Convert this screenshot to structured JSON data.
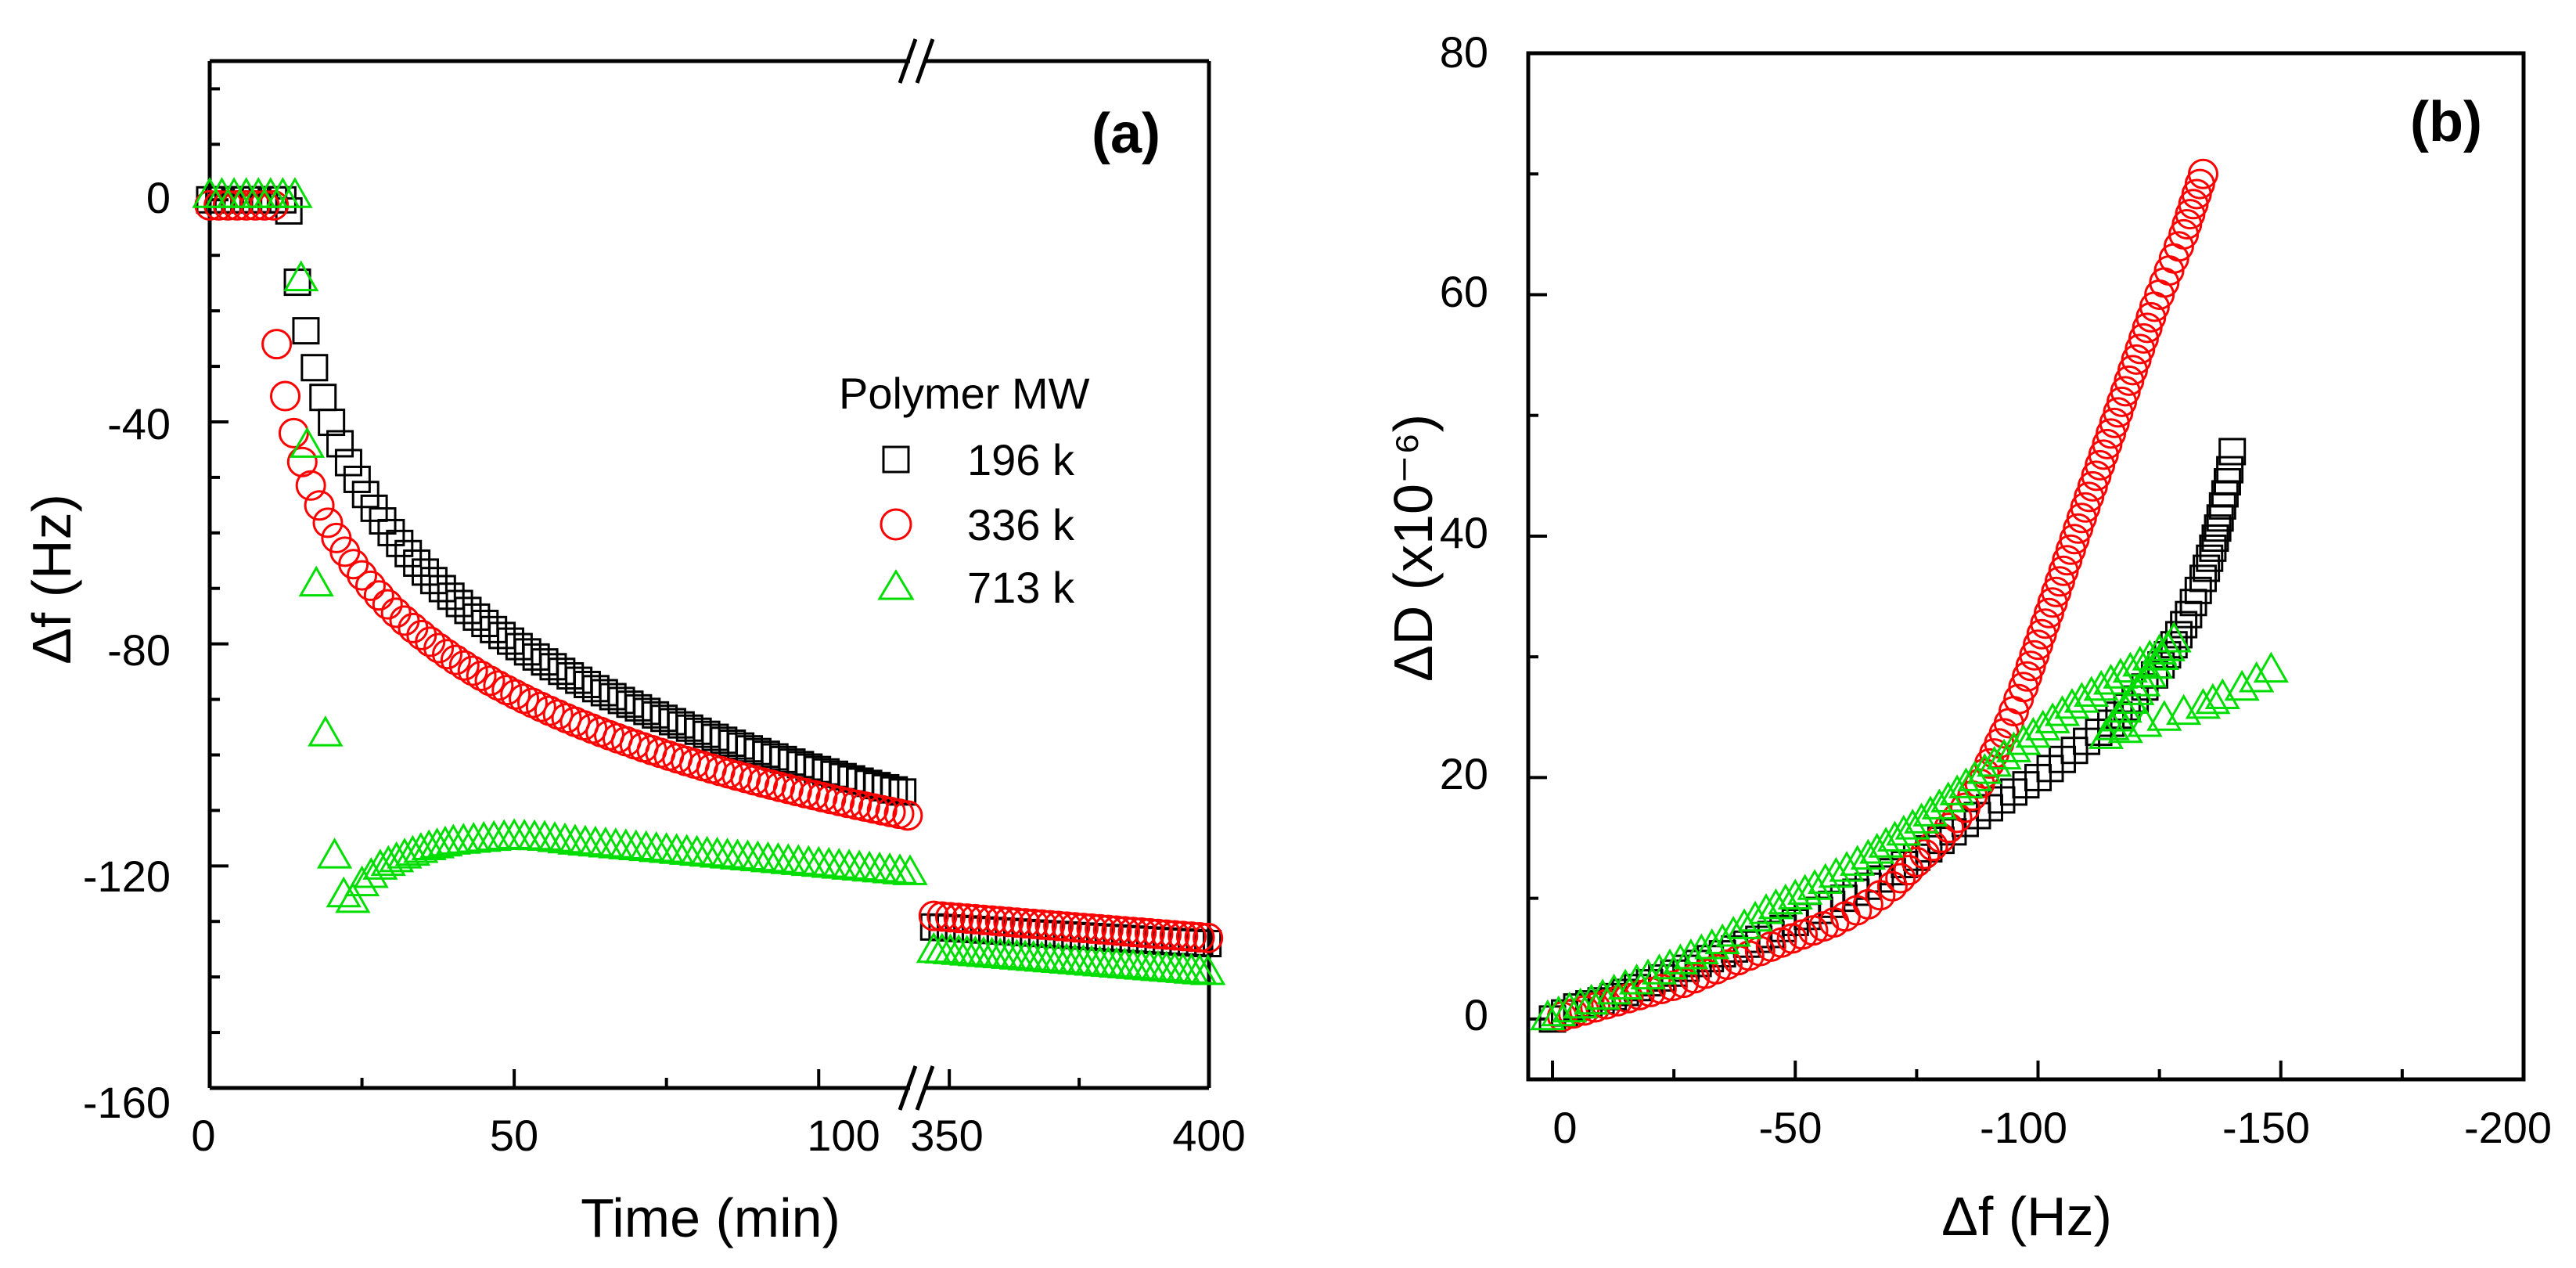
{
  "chart_data": [
    {
      "panel": "(a)",
      "type": "scatter",
      "xlabel": "Time (min)",
      "ylabel": "Δf (Hz)",
      "ylim": [
        -160,
        25
      ],
      "x_break": {
        "left_range": [
          0,
          115
        ],
        "right_range": [
          345,
          400
        ]
      },
      "x_ticks_left": [
        "0",
        "50",
        "100"
      ],
      "x_ticks_right": [
        "350",
        "400"
      ],
      "y_ticks": [
        "0",
        "-40",
        "-80",
        "-120",
        "-160"
      ],
      "y_tick_values": [
        0,
        -40,
        -80,
        -120,
        -160
      ],
      "legend_title": "Polymer MW",
      "series": [
        {
          "name": "196 k",
          "marker": "square",
          "color": "#000000",
          "fit_left": {
            "t0": 13,
            "plateau": 0,
            "v_start": -2,
            "v_end": -107,
            "t_end": 115,
            "rate": 0.42
          },
          "right": {
            "v_start": -131,
            "v_end": -134
          }
        },
        {
          "name": "336 k",
          "marker": "circle",
          "color": "#ff0000",
          "fit_left": {
            "t0": 11,
            "plateau": -1,
            "v_start": -26,
            "v_end": -111,
            "t_end": 115,
            "rate": 0.35
          },
          "right": {
            "v_start": -129,
            "v_end": -133
          }
        },
        {
          "name": "713 k",
          "marker": "triangle",
          "color": "#00dd00",
          "points_left": [
            [
              0,
              1
            ],
            [
              2,
              1
            ],
            [
              4,
              1
            ],
            [
              6,
              1
            ],
            [
              8,
              1
            ],
            [
              10,
              1
            ],
            [
              12,
              1
            ],
            [
              14,
              1
            ],
            [
              15,
              -14
            ],
            [
              16,
              -44
            ],
            [
              17.5,
              -69
            ],
            [
              19,
              -96
            ],
            [
              20.5,
              -118
            ],
            [
              22,
              -125
            ],
            [
              23.5,
              -126
            ],
            [
              25,
              -123
            ],
            [
              28,
              -120
            ],
            [
              32,
              -118
            ],
            [
              36,
              -116.5
            ],
            [
              40,
              -115.5
            ],
            [
              45,
              -115
            ],
            [
              50,
              -114.5
            ],
            [
              55,
              -114.8
            ],
            [
              60,
              -115.5
            ],
            [
              65,
              -116
            ],
            [
              70,
              -116.5
            ],
            [
              75,
              -117
            ],
            [
              80,
              -117.5
            ],
            [
              85,
              -118
            ],
            [
              90,
              -118.5
            ],
            [
              95,
              -119
            ],
            [
              100,
              -119.5
            ],
            [
              105,
              -120
            ],
            [
              110,
              -120.5
            ],
            [
              115,
              -121
            ]
          ],
          "right": {
            "v_start": -135,
            "v_end": -139
          }
        }
      ]
    },
    {
      "panel": "(b)",
      "type": "scatter",
      "xlabel": "Δf (Hz)",
      "ylabel": "ΔD (x10⁻⁶)",
      "xlim": [
        5,
        -200
      ],
      "ylim": [
        -5,
        80
      ],
      "x_ticks": [
        "0",
        "-50",
        "-100",
        "-150",
        "-200"
      ],
      "x_tick_values": [
        0,
        -50,
        -100,
        -150,
        -200
      ],
      "y_ticks": [
        "0",
        "20",
        "40",
        "60",
        "80"
      ],
      "y_tick_values": [
        0,
        20,
        40,
        60,
        80
      ],
      "series": [
        {
          "name": "196 k",
          "marker": "square",
          "color": "#000000",
          "points": [
            [
              0,
              0
            ],
            [
              -5,
              1
            ],
            [
              -10,
              1.5
            ],
            [
              -15,
              2.2
            ],
            [
              -20,
              3
            ],
            [
              -25,
              3.8
            ],
            [
              -30,
              4.6
            ],
            [
              -35,
              5.4
            ],
            [
              -40,
              6.2
            ],
            [
              -45,
              7
            ],
            [
              -50,
              8
            ],
            [
              -55,
              9
            ],
            [
              -60,
              10
            ],
            [
              -65,
              11
            ],
            [
              -70,
              12.2
            ],
            [
              -75,
              13.4
            ],
            [
              -80,
              14.8
            ],
            [
              -85,
              16.2
            ],
            [
              -90,
              17.5
            ],
            [
              -95,
              18.8
            ],
            [
              -100,
              20
            ],
            [
              -105,
              21.5
            ],
            [
              -110,
              23
            ],
            [
              -115,
              24.5
            ],
            [
              -120,
              26.5
            ],
            [
              -124,
              28.5
            ],
            [
              -128,
              31
            ],
            [
              -131,
              33.5
            ],
            [
              -134,
              36.5
            ],
            [
              -136,
              39
            ],
            [
              -137.5,
              41.5
            ],
            [
              -138.5,
              43.5
            ],
            [
              -139.5,
              45.5
            ],
            [
              -140,
              47
            ]
          ]
        },
        {
          "name": "336 k",
          "marker": "circle",
          "color": "#ff0000",
          "points": [
            [
              -2,
              0.2
            ],
            [
              -27,
              3
            ],
            [
              -45,
              6
            ],
            [
              -58,
              8
            ],
            [
              -65,
              9.5
            ],
            [
              -70,
              11
            ],
            [
              -75,
              13
            ],
            [
              -80,
              15
            ],
            [
              -85,
              17.5
            ],
            [
              -88,
              19.5
            ],
            [
              -91,
              22
            ],
            [
              -94,
              24.5
            ],
            [
              -97,
              27.5
            ],
            [
              -100,
              31
            ],
            [
              -103,
              34.5
            ],
            [
              -106,
              38
            ],
            [
              -109,
              41.5
            ],
            [
              -112,
              45
            ],
            [
              -115,
              48.5
            ],
            [
              -118,
              52
            ],
            [
              -121,
              55.5
            ],
            [
              -124,
              59
            ],
            [
              -127,
              62
            ],
            [
              -130,
              65
            ],
            [
              -132,
              67.5
            ],
            [
              -134,
              70
            ]
          ]
        },
        {
          "name": "713 k",
          "marker": "triangle",
          "color": "#00dd00",
          "points": [
            [
              1,
              0.2
            ],
            [
              -8,
              1.5
            ],
            [
              -22,
              4
            ],
            [
              -35,
              6.5
            ],
            [
              -44,
              9
            ],
            [
              -54,
              11
            ],
            [
              -65,
              13.5
            ],
            [
              -76,
              16.5
            ],
            [
              -87,
              20
            ],
            [
              -97,
              23
            ],
            [
              -107,
              26
            ],
            [
              -117,
              28.5
            ],
            [
              -125,
              30.5
            ],
            [
              -128,
              31.5
            ],
            [
              -114,
              23.5
            ],
            [
              -118,
              24
            ],
            [
              -122,
              24.5
            ],
            [
              -126,
              25
            ],
            [
              -130,
              25.5
            ],
            [
              -134,
              26
            ],
            [
              -138,
              26.8
            ],
            [
              -142,
              27.5
            ],
            [
              -145,
              28.2
            ],
            [
              -148,
              29
            ]
          ]
        }
      ]
    }
  ]
}
